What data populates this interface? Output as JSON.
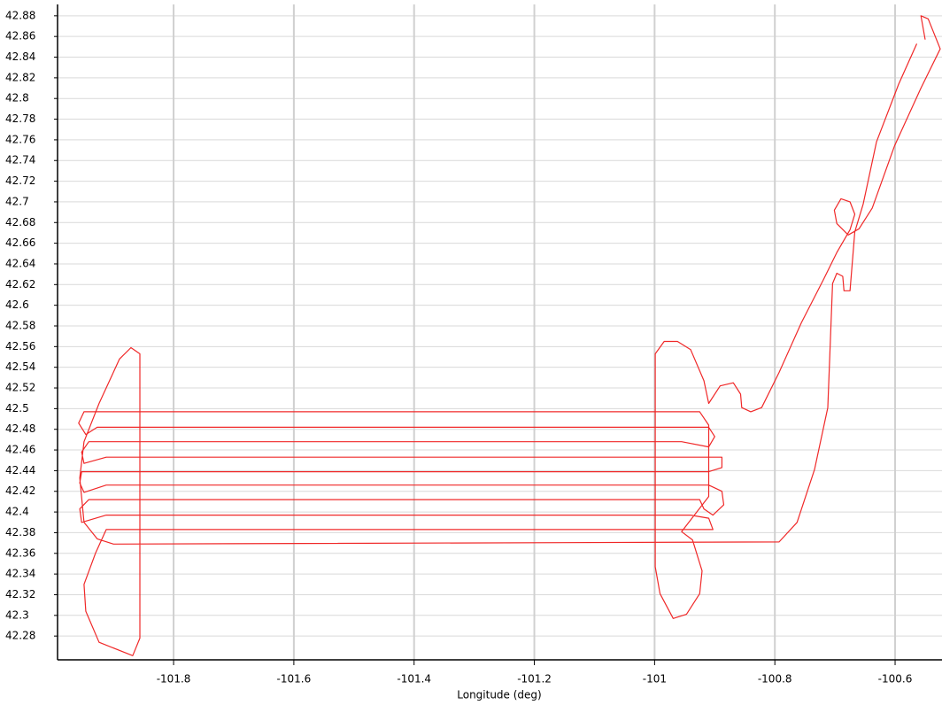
{
  "chart_data": {
    "type": "line",
    "x_label": "Longitude (deg)",
    "color": "#f02828",
    "grid": true,
    "xlim": [
      -101.993,
      -100.522
    ],
    "ylim": [
      42.257,
      42.891
    ],
    "xticks": [
      -101.8,
      -101.6,
      -101.4,
      -101.2,
      -101,
      -100.8,
      -100.6
    ],
    "yticks": [
      42.28,
      42.3,
      42.32,
      42.34,
      42.36,
      42.38,
      42.4,
      42.42,
      42.44,
      42.46,
      42.48,
      42.5,
      42.52,
      42.54,
      42.56,
      42.58,
      42.6,
      42.62,
      42.64,
      42.66,
      42.68,
      42.7,
      42.72,
      42.74,
      42.76,
      42.78,
      42.8,
      42.82,
      42.84,
      42.86,
      42.88
    ],
    "x": [
      -100.55,
      -100.557,
      -100.545,
      -100.525,
      -100.557,
      -100.601,
      -100.638,
      -100.66,
      -100.678,
      -100.697,
      -100.701,
      -100.69,
      -100.675,
      -100.667,
      -100.675,
      -100.697,
      -100.719,
      -100.756,
      -100.793,
      -100.822,
      -100.84,
      -100.855,
      -100.857,
      -100.869,
      -100.891,
      -100.91,
      -100.918,
      -100.94,
      -100.962,
      -100.984,
      -100.999,
      -100.999,
      -100.991,
      -100.969,
      -100.947,
      -100.925,
      -100.921,
      -100.937,
      -100.955,
      -100.91,
      -100.91,
      -100.925,
      -101.949,
      -101.958,
      -101.946,
      -101.927,
      -100.91,
      -100.9,
      -100.91,
      -100.955,
      -101.941,
      -101.953,
      -101.949,
      -101.912,
      -100.888,
      -100.888,
      -100.91,
      -101.953,
      -101.956,
      -101.949,
      -101.912,
      -100.91,
      -100.888,
      -100.885,
      -100.903,
      -100.918,
      -100.925,
      -101.941,
      -101.956,
      -101.953,
      -101.912,
      -100.94,
      -100.91,
      -100.903,
      -100.925,
      -101.912,
      -101.93,
      -101.949,
      -101.946,
      -101.924,
      -101.868,
      -101.856,
      -101.856,
      -101.871,
      -101.89,
      -101.924,
      -101.949,
      -101.956,
      -101.949,
      -101.927,
      -101.9,
      -100.793,
      -100.763,
      -100.734,
      -100.712,
      -100.704,
      -100.697,
      -100.687,
      -100.685,
      -100.675,
      -100.667,
      -100.653,
      -100.631,
      -100.594,
      -100.564
    ],
    "values": [
      42.857,
      42.88,
      42.877,
      42.848,
      42.81,
      42.754,
      42.694,
      42.674,
      42.668,
      42.679,
      42.692,
      42.703,
      42.7,
      42.688,
      42.673,
      42.651,
      42.625,
      42.583,
      42.535,
      42.501,
      42.497,
      42.501,
      42.514,
      42.525,
      42.522,
      42.505,
      42.527,
      42.557,
      42.565,
      42.565,
      42.553,
      42.347,
      42.321,
      42.297,
      42.301,
      42.321,
      42.343,
      42.373,
      42.381,
      42.415,
      42.484,
      42.497,
      42.497,
      42.486,
      42.475,
      42.482,
      42.482,
      42.473,
      42.463,
      42.468,
      42.468,
      42.458,
      42.447,
      42.453,
      42.453,
      42.443,
      42.439,
      42.439,
      42.428,
      42.419,
      42.426,
      42.426,
      42.42,
      42.407,
      42.397,
      42.403,
      42.412,
      42.412,
      42.403,
      42.39,
      42.397,
      42.397,
      42.394,
      42.383,
      42.383,
      42.383,
      42.36,
      42.33,
      42.304,
      42.274,
      42.261,
      42.278,
      42.553,
      42.559,
      42.548,
      42.505,
      42.468,
      42.433,
      42.39,
      42.374,
      42.369,
      42.371,
      42.39,
      42.441,
      42.501,
      42.621,
      42.631,
      42.628,
      42.614,
      42.614,
      42.671,
      42.698,
      42.758,
      42.814,
      42.853
    ]
  }
}
